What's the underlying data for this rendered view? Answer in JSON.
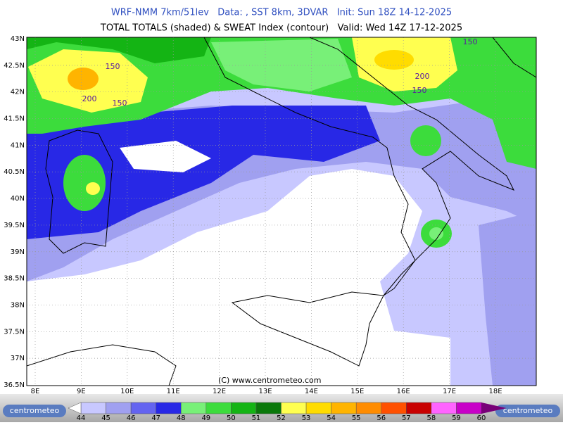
{
  "header": {
    "line1": "WRF-NMM 7km/51lev   Data: , SST 8km, 3DVAR   Init: Sun 18Z 14-12-2025",
    "line2": "TOTAL TOTALS (shaded) & SWEAT Index (contour)   Valid: Wed 14Z 17-12-2025"
  },
  "map": {
    "lat_labels": [
      "43N",
      "42.5N",
      "42N",
      "41.5N",
      "41N",
      "40.5N",
      "40N",
      "39.5N",
      "39N",
      "38.5N",
      "38N",
      "37.5N",
      "37N",
      "36.5N"
    ],
    "lon_labels": [
      "8E",
      "9E",
      "10E",
      "11E",
      "12E",
      "13E",
      "14E",
      "15E",
      "16E",
      "17E",
      "18E"
    ],
    "contour_labels": [
      "150",
      "200",
      "150",
      "200",
      "150",
      "150"
    ],
    "credit": "(C) www.centrometeo.com"
  },
  "colorbar": {
    "labels": [
      44,
      45,
      46,
      47,
      48,
      49,
      50,
      51,
      52,
      53,
      54,
      55,
      56,
      57,
      58,
      59,
      60
    ],
    "colors": [
      "#c8c8ff",
      "#a0a0f0",
      "#6464f0",
      "#2828e6",
      "#78f078",
      "#3cdc3c",
      "#14b414",
      "#0a780a",
      "#ffff50",
      "#ffdc00",
      "#ffb400",
      "#ff8c00",
      "#ff5000",
      "#c80000",
      "#ff64ff",
      "#c800c8",
      "#780078"
    ]
  },
  "logos": {
    "left": "centrometeo",
    "right": "centrometeo"
  }
}
